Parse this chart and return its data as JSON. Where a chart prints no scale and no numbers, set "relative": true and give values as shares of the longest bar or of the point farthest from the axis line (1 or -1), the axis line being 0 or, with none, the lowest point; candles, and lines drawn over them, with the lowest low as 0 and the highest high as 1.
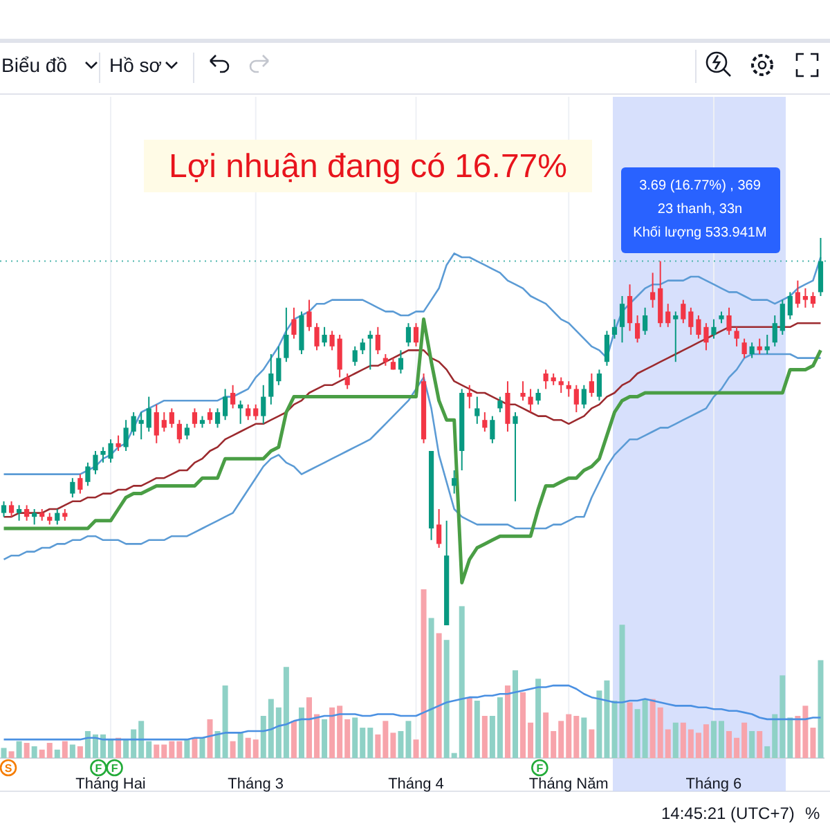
{
  "chart_data": [
    {
      "type": "candlestick",
      "relative": true,
      "categories": [
        null,
        null,
        null,
        null,
        null,
        null,
        null,
        null,
        null,
        null,
        null,
        null,
        null,
        null,
        null,
        null,
        null,
        null,
        null,
        null,
        null,
        null,
        null,
        null,
        null,
        null,
        null,
        null,
        null,
        null,
        null,
        null,
        null,
        null,
        null,
        null,
        null,
        null,
        null,
        null,
        null,
        null,
        null,
        null,
        null,
        null,
        null,
        null,
        null,
        null,
        null,
        null,
        null,
        null,
        null,
        null,
        null,
        null,
        null,
        null,
        null,
        null,
        null,
        null,
        null,
        null,
        null,
        null,
        null,
        null,
        null,
        null,
        null,
        null,
        null,
        null,
        null,
        null,
        null,
        null,
        null,
        null,
        null,
        null,
        null,
        null,
        null,
        null,
        null,
        null,
        null,
        null,
        null,
        null,
        null,
        null,
        null,
        null,
        null,
        null,
        null,
        null,
        null,
        null,
        null,
        null,
        null,
        null
      ],
      "ohlc": [
        [
          0.29,
          0.32,
          0.28,
          0.31
        ],
        [
          0.31,
          0.32,
          0.28,
          0.29
        ],
        [
          0.29,
          0.31,
          0.27,
          0.3
        ],
        [
          0.3,
          0.31,
          0.27,
          0.28
        ],
        [
          0.28,
          0.3,
          0.26,
          0.29
        ],
        [
          0.29,
          0.3,
          0.27,
          0.28
        ],
        [
          0.28,
          0.29,
          0.26,
          0.27
        ],
        [
          0.27,
          0.3,
          0.26,
          0.29
        ],
        [
          0.29,
          0.3,
          0.27,
          0.28
        ],
        [
          0.34,
          0.38,
          0.33,
          0.37
        ],
        [
          0.38,
          0.39,
          0.34,
          0.35
        ],
        [
          0.37,
          0.42,
          0.36,
          0.41
        ],
        [
          0.4,
          0.45,
          0.39,
          0.44
        ],
        [
          0.44,
          0.46,
          0.42,
          0.45
        ],
        [
          0.43,
          0.48,
          0.42,
          0.47
        ],
        [
          0.47,
          0.49,
          0.45,
          0.46
        ],
        [
          0.46,
          0.53,
          0.45,
          0.51
        ],
        [
          0.5,
          0.55,
          0.49,
          0.54
        ],
        [
          0.52,
          0.55,
          0.48,
          0.53
        ],
        [
          0.51,
          0.59,
          0.5,
          0.56
        ],
        [
          0.55,
          0.57,
          0.47,
          0.49
        ],
        [
          0.53,
          0.55,
          0.5,
          0.51
        ],
        [
          0.55,
          0.56,
          0.51,
          0.52
        ],
        [
          0.52,
          0.53,
          0.47,
          0.48
        ],
        [
          0.49,
          0.52,
          0.48,
          0.51
        ],
        [
          0.55,
          0.56,
          0.51,
          0.52
        ],
        [
          0.52,
          0.54,
          0.51,
          0.53
        ],
        [
          0.55,
          0.56,
          0.52,
          0.53
        ],
        [
          0.52,
          0.56,
          0.51,
          0.55
        ],
        [
          0.54,
          0.61,
          0.53,
          0.59
        ],
        [
          0.6,
          0.62,
          0.56,
          0.57
        ],
        [
          0.56,
          0.58,
          0.52,
          0.57
        ],
        [
          0.56,
          0.57,
          0.53,
          0.54
        ],
        [
          0.56,
          0.57,
          0.53,
          0.54
        ],
        [
          0.54,
          0.62,
          0.52,
          0.59
        ],
        [
          0.59,
          0.7,
          0.57,
          0.65
        ],
        [
          0.63,
          0.72,
          0.62,
          0.69
        ],
        [
          0.69,
          0.82,
          0.68,
          0.75
        ],
        [
          0.79,
          0.82,
          0.74,
          0.75
        ],
        [
          0.71,
          0.81,
          0.7,
          0.8
        ],
        [
          0.81,
          0.84,
          0.76,
          0.77
        ],
        [
          0.77,
          0.78,
          0.71,
          0.72
        ],
        [
          0.73,
          0.77,
          0.72,
          0.75
        ],
        [
          0.75,
          0.76,
          0.71,
          0.72
        ],
        [
          0.74,
          0.75,
          0.64,
          0.66
        ],
        [
          0.64,
          0.65,
          0.61,
          0.62
        ],
        [
          0.68,
          0.72,
          0.67,
          0.71
        ],
        [
          0.71,
          0.74,
          0.7,
          0.73
        ],
        [
          0.74,
          0.76,
          0.66,
          0.75
        ],
        [
          0.75,
          0.77,
          0.7,
          0.71
        ],
        [
          0.69,
          0.7,
          0.67,
          0.68
        ],
        [
          0.68,
          0.69,
          0.66,
          0.66
        ],
        [
          0.66,
          0.71,
          0.65,
          0.69
        ],
        [
          0.73,
          0.78,
          0.72,
          0.77
        ],
        [
          0.77,
          0.78,
          0.72,
          0.73
        ],
        [
          0.63,
          0.65,
          0.47,
          0.48
        ],
        [
          0.25,
          0.45,
          0.22,
          0.45
        ],
        [
          0.26,
          0.3,
          0.2,
          0.21
        ],
        [
          0.0,
          0.27,
          0.0,
          0.18
        ],
        [
          0.36,
          0.4,
          0.34,
          0.38
        ],
        [
          0.45,
          0.61,
          0.4,
          0.6
        ],
        [
          0.6,
          0.62,
          0.56,
          0.59
        ],
        [
          0.54,
          0.59,
          0.52,
          0.56
        ],
        [
          0.53,
          0.55,
          0.5,
          0.51
        ],
        [
          0.48,
          0.54,
          0.47,
          0.53
        ],
        [
          0.56,
          0.59,
          0.55,
          0.58
        ],
        [
          0.6,
          0.63,
          0.5,
          0.52
        ],
        [
          0.52,
          0.55,
          0.32,
          0.54
        ],
        [
          0.6,
          0.63,
          0.58,
          0.59
        ],
        [
          0.59,
          0.61,
          0.55,
          0.57
        ],
        [
          0.58,
          0.61,
          0.57,
          0.6
        ],
        [
          0.65,
          0.66,
          0.61,
          0.63
        ],
        [
          0.64,
          0.65,
          0.62,
          0.63
        ],
        [
          0.63,
          0.64,
          0.6,
          0.62
        ],
        [
          0.62,
          0.63,
          0.59,
          0.61
        ],
        [
          0.61,
          0.62,
          0.55,
          0.57
        ],
        [
          0.57,
          0.62,
          0.56,
          0.61
        ],
        [
          0.63,
          0.65,
          0.59,
          0.6
        ],
        [
          0.59,
          0.66,
          0.58,
          0.65
        ],
        [
          0.68,
          0.76,
          0.67,
          0.75
        ],
        [
          0.75,
          0.79,
          0.74,
          0.77
        ],
        [
          0.77,
          0.85,
          0.73,
          0.83
        ],
        [
          0.85,
          0.88,
          0.76,
          0.78
        ],
        [
          0.78,
          0.8,
          0.73,
          0.74
        ],
        [
          0.76,
          0.82,
          0.75,
          0.8
        ],
        [
          0.86,
          0.91,
          0.82,
          0.84
        ],
        [
          0.87,
          0.94,
          0.77,
          0.78
        ],
        [
          0.81,
          0.83,
          0.77,
          0.78
        ],
        [
          0.79,
          0.81,
          0.68,
          0.8
        ],
        [
          0.83,
          0.84,
          0.78,
          0.79
        ],
        [
          0.81,
          0.82,
          0.75,
          0.77
        ],
        [
          0.79,
          0.8,
          0.74,
          0.75
        ],
        [
          0.77,
          0.78,
          0.71,
          0.73
        ],
        [
          0.75,
          0.79,
          0.74,
          0.77
        ],
        [
          0.79,
          0.81,
          0.78,
          0.8
        ],
        [
          0.8,
          0.82,
          0.75,
          0.76
        ],
        [
          0.76,
          0.77,
          0.72,
          0.74
        ],
        [
          0.73,
          0.74,
          0.69,
          0.7
        ],
        [
          0.7,
          0.73,
          0.69,
          0.72
        ],
        [
          0.72,
          0.74,
          0.7,
          0.71
        ],
        [
          0.71,
          0.75,
          0.7,
          0.72
        ],
        [
          0.73,
          0.8,
          0.72,
          0.78
        ],
        [
          0.76,
          0.84,
          0.75,
          0.83
        ],
        [
          0.8,
          0.86,
          0.79,
          0.85
        ],
        [
          0.86,
          0.89,
          0.82,
          0.83
        ],
        [
          0.85,
          0.87,
          0.82,
          0.84
        ],
        [
          0.85,
          0.86,
          0.82,
          0.83
        ],
        [
          0.86,
          1.0,
          0.85,
          0.94
        ]
      ],
      "series": [
        {
          "type": "line",
          "color": "#5b9bd5",
          "values": [
            0.39,
            0.39,
            0.39,
            0.39,
            0.39,
            0.39,
            0.39,
            0.39,
            0.39,
            0.39,
            0.39,
            0.4,
            0.41,
            0.43,
            0.44,
            0.46,
            0.47,
            0.51,
            0.55,
            0.56,
            0.57,
            0.58,
            0.58,
            0.58,
            0.58,
            0.58,
            0.58,
            0.58,
            0.58,
            0.59,
            0.59,
            0.6,
            0.61,
            0.64,
            0.66,
            0.69,
            0.72,
            0.76,
            0.79,
            0.8,
            0.81,
            0.83,
            0.83,
            0.84,
            0.84,
            0.84,
            0.84,
            0.84,
            0.83,
            0.82,
            0.81,
            0.81,
            0.8,
            0.8,
            0.81,
            0.81,
            0.84,
            0.87,
            0.93,
            0.96,
            0.95,
            0.95,
            0.94,
            0.93,
            0.92,
            0.91,
            0.89,
            0.88,
            0.87,
            0.85,
            0.84,
            0.83,
            0.81,
            0.79,
            0.78,
            0.76,
            0.74,
            0.72,
            0.71,
            0.69,
            0.76,
            0.81,
            0.83,
            0.85,
            0.87,
            0.88,
            0.88,
            0.89,
            0.89,
            0.89,
            0.9,
            0.9,
            0.89,
            0.88,
            0.87,
            0.86,
            0.86,
            0.85,
            0.84,
            0.84,
            0.84,
            0.83,
            0.84,
            0.85,
            0.87,
            0.88,
            0.89,
            0.95
          ]
        },
        {
          "type": "line",
          "color": "#5b9bd5",
          "values": [
            0.17,
            0.18,
            0.18,
            0.19,
            0.19,
            0.2,
            0.2,
            0.21,
            0.21,
            0.22,
            0.22,
            0.23,
            0.23,
            0.22,
            0.22,
            0.22,
            0.21,
            0.21,
            0.21,
            0.22,
            0.22,
            0.22,
            0.23,
            0.23,
            0.23,
            0.24,
            0.25,
            0.26,
            0.27,
            0.28,
            0.29,
            0.32,
            0.35,
            0.38,
            0.41,
            0.43,
            0.44,
            0.42,
            0.41,
            0.39,
            0.4,
            0.41,
            0.42,
            0.43,
            0.44,
            0.45,
            0.46,
            0.47,
            0.48,
            0.5,
            0.52,
            0.54,
            0.56,
            0.58,
            0.61,
            0.64,
            0.56,
            0.44,
            0.37,
            0.3,
            0.28,
            0.27,
            0.26,
            0.26,
            0.26,
            0.26,
            0.26,
            0.25,
            0.25,
            0.25,
            0.25,
            0.25,
            0.26,
            0.26,
            0.27,
            0.28,
            0.28,
            0.33,
            0.37,
            0.41,
            0.44,
            0.46,
            0.48,
            0.48,
            0.49,
            0.5,
            0.51,
            0.51,
            0.52,
            0.53,
            0.54,
            0.55,
            0.56,
            0.59,
            0.61,
            0.64,
            0.66,
            0.69,
            0.7,
            0.7,
            0.7,
            0.7,
            0.7,
            0.7,
            0.69,
            0.69,
            0.69,
            0.69
          ]
        },
        {
          "type": "line",
          "color": "#9c2a2e",
          "values": [
            0.28,
            0.28,
            0.29,
            0.29,
            0.29,
            0.29,
            0.3,
            0.3,
            0.31,
            0.32,
            0.32,
            0.33,
            0.33,
            0.34,
            0.34,
            0.35,
            0.35,
            0.36,
            0.36,
            0.37,
            0.38,
            0.38,
            0.39,
            0.4,
            0.4,
            0.42,
            0.43,
            0.45,
            0.46,
            0.48,
            0.49,
            0.5,
            0.51,
            0.52,
            0.52,
            0.53,
            0.54,
            0.55,
            0.57,
            0.58,
            0.6,
            0.61,
            0.62,
            0.62,
            0.63,
            0.64,
            0.65,
            0.66,
            0.67,
            0.67,
            0.68,
            0.69,
            0.7,
            0.71,
            0.71,
            0.71,
            0.69,
            0.68,
            0.66,
            0.63,
            0.62,
            0.61,
            0.6,
            0.6,
            0.59,
            0.58,
            0.57,
            0.57,
            0.56,
            0.55,
            0.54,
            0.54,
            0.53,
            0.53,
            0.52,
            0.53,
            0.54,
            0.56,
            0.57,
            0.59,
            0.6,
            0.62,
            0.63,
            0.65,
            0.66,
            0.67,
            0.68,
            0.69,
            0.7,
            0.71,
            0.72,
            0.73,
            0.74,
            0.75,
            0.76,
            0.77,
            0.77,
            0.77,
            0.77,
            0.77,
            0.77,
            0.77,
            0.77,
            0.77,
            0.78,
            0.78,
            0.78,
            0.78
          ]
        },
        {
          "type": "line",
          "color": "#4a9e45",
          "values": [
            0.25,
            0.25,
            0.25,
            0.25,
            0.25,
            0.25,
            0.25,
            0.25,
            0.25,
            0.25,
            0.25,
            0.25,
            0.27,
            0.27,
            0.27,
            0.3,
            0.33,
            0.34,
            0.34,
            0.35,
            0.36,
            0.36,
            0.36,
            0.36,
            0.36,
            0.36,
            0.38,
            0.38,
            0.38,
            0.43,
            0.43,
            0.43,
            0.43,
            0.43,
            0.43,
            0.45,
            0.46,
            0.55,
            0.59,
            0.59,
            0.59,
            0.59,
            0.59,
            0.59,
            0.59,
            0.59,
            0.59,
            0.59,
            0.59,
            0.59,
            0.59,
            0.59,
            0.59,
            0.59,
            0.59,
            0.79,
            0.68,
            0.58,
            0.53,
            0.53,
            0.11,
            0.17,
            0.2,
            0.21,
            0.22,
            0.23,
            0.23,
            0.23,
            0.23,
            0.23,
            0.3,
            0.36,
            0.36,
            0.37,
            0.38,
            0.38,
            0.4,
            0.41,
            0.43,
            0.49,
            0.55,
            0.58,
            0.59,
            0.59,
            0.6,
            0.6,
            0.6,
            0.6,
            0.6,
            0.6,
            0.6,
            0.6,
            0.6,
            0.6,
            0.6,
            0.6,
            0.6,
            0.6,
            0.6,
            0.6,
            0.6,
            0.6,
            0.6,
            0.66,
            0.66,
            0.66,
            0.67,
            0.71
          ]
        }
      ],
      "ref_lines": [
        {
          "axis": "y",
          "value": 0.94,
          "color": "#4db6ac",
          "line_style": "dotted"
        }
      ],
      "annotations": [
        "Lợi nhuận đang có 16.77%",
        "3.69 (16.77%) , 369",
        "23 thanh, 33n",
        "Khối lượng 533.941M",
        "Biểu đồ",
        "Hồ sơ",
        "14:45:21 (UTC+7)",
        "%"
      ]
    },
    {
      "type": "bar",
      "relative": true,
      "grid": "x",
      "categories": [
        null,
        null,
        null,
        null,
        null,
        null,
        null,
        null,
        null,
        null,
        null,
        null,
        null,
        null,
        "Tháng Hai",
        null,
        null,
        null,
        null,
        null,
        null,
        null,
        null,
        null,
        null,
        null,
        null,
        null,
        null,
        null,
        null,
        null,
        null,
        "Tháng 3",
        null,
        null,
        null,
        null,
        null,
        null,
        null,
        null,
        null,
        null,
        null,
        null,
        null,
        null,
        null,
        null,
        null,
        null,
        null,
        null,
        "Tháng 4",
        null,
        null,
        null,
        null,
        null,
        null,
        null,
        null,
        null,
        null,
        null,
        null,
        null,
        null,
        null,
        null,
        null,
        null,
        null,
        "Tháng Năm",
        null,
        null,
        null,
        null,
        null,
        null,
        null,
        null,
        null,
        null,
        null,
        null,
        null,
        null,
        null,
        null,
        null,
        null,
        "Tháng 6",
        null,
        null,
        null,
        null,
        null,
        null,
        null,
        null,
        null,
        null,
        null,
        null,
        null,
        null
      ],
      "colors": [
        "#8fd1c6",
        "#f7a4ab",
        "#8fd1c6",
        "#f7a4ab",
        "#8fd1c6",
        "#f7a4ab",
        "#f7a4ab",
        "#8fd1c6",
        "#f7a4ab",
        "#8fd1c6",
        "#f7a4ab",
        "#8fd1c6",
        "#8fd1c6",
        "#8fd1c6",
        "#8fd1c6",
        "#f7a4ab",
        "#8fd1c6",
        "#8fd1c6",
        "#8fd1c6",
        "#8fd1c6",
        "#f7a4ab",
        "#f7a4ab",
        "#f7a4ab",
        "#f7a4ab",
        "#8fd1c6",
        "#f7a4ab",
        "#8fd1c6",
        "#f7a4ab",
        "#8fd1c6",
        "#8fd1c6",
        "#f7a4ab",
        "#8fd1c6",
        "#f7a4ab",
        "#f7a4ab",
        "#8fd1c6",
        "#8fd1c6",
        "#8fd1c6",
        "#8fd1c6",
        "#f7a4ab",
        "#8fd1c6",
        "#f7a4ab",
        "#f7a4ab",
        "#8fd1c6",
        "#f7a4ab",
        "#f7a4ab",
        "#f7a4ab",
        "#8fd1c6",
        "#8fd1c6",
        "#8fd1c6",
        "#f7a4ab",
        "#f7a4ab",
        "#f7a4ab",
        "#8fd1c6",
        "#8fd1c6",
        "#f7a4ab",
        "#f7a4ab",
        "#8fd1c6",
        "#f7a4ab",
        "#8fd1c6",
        "#8fd1c6",
        "#8fd1c6",
        "#f7a4ab",
        "#8fd1c6",
        "#f7a4ab",
        "#8fd1c6",
        "#8fd1c6",
        "#f7a4ab",
        "#8fd1c6",
        "#f7a4ab",
        "#f7a4ab",
        "#8fd1c6",
        "#f7a4ab",
        "#f7a4ab",
        "#f7a4ab",
        "#f7a4ab",
        "#f7a4ab",
        "#8fd1c6",
        "#f7a4ab",
        "#8fd1c6",
        "#8fd1c6",
        "#8fd1c6",
        "#8fd1c6",
        "#f7a4ab",
        "#8fd1c6",
        "#8fd1c6",
        "#f7a4ab",
        "#f7a4ab",
        "#f7a4ab",
        "#8fd1c6",
        "#f7a4ab",
        "#f7a4ab",
        "#f7a4ab",
        "#f7a4ab",
        "#8fd1c6",
        "#8fd1c6",
        "#f7a4ab",
        "#f7a4ab",
        "#f7a4ab",
        "#8fd1c6",
        "#f7a4ab",
        "#8fd1c6",
        "#8fd1c6",
        "#8fd1c6",
        "#8fd1c6",
        "#f7a4ab",
        "#f7a4ab",
        "#f7a4ab",
        "#8fd1c6"
      ],
      "values": [
        0.06,
        0.04,
        0.1,
        0.09,
        0.07,
        0.05,
        0.09,
        0.05,
        0.1,
        0.08,
        0.07,
        0.16,
        0.14,
        0.14,
        0.11,
        0.12,
        0.11,
        0.17,
        0.22,
        0.1,
        0.08,
        0.08,
        0.1,
        0.1,
        0.11,
        0.12,
        0.12,
        0.23,
        0.16,
        0.43,
        0.1,
        0.15,
        0.12,
        0.11,
        0.25,
        0.35,
        0.3,
        0.54,
        0.22,
        0.3,
        0.36,
        0.26,
        0.23,
        0.3,
        0.31,
        0.23,
        0.24,
        0.18,
        0.18,
        0.14,
        0.22,
        0.15,
        0.16,
        0.22,
        0.11,
        1.0,
        0.83,
        0.74,
        0.7,
        0.03,
        0.9,
        0.36,
        0.34,
        0.25,
        0.25,
        0.36,
        0.43,
        0.52,
        0.39,
        0.21,
        0.47,
        0.27,
        0.16,
        0.22,
        0.26,
        0.25,
        0.24,
        0.17,
        0.4,
        0.46,
        0.34,
        0.79,
        0.33,
        0.29,
        0.35,
        0.35,
        0.3,
        0.17,
        0.21,
        0.21,
        0.17,
        0.15,
        0.2,
        0.22,
        0.22,
        0.16,
        0.12,
        0.21,
        0.16,
        0.16,
        0.07,
        0.26,
        0.49,
        0.24,
        0.25,
        0.31,
        0.18,
        0.58
      ],
      "series": [
        {
          "type": "line",
          "color": "#4a90e2",
          "values": [
            0.11,
            0.11,
            0.11,
            0.11,
            0.11,
            0.11,
            0.11,
            0.11,
            0.11,
            0.11,
            0.11,
            0.12,
            0.12,
            0.11,
            0.11,
            0.11,
            0.11,
            0.11,
            0.11,
            0.11,
            0.11,
            0.11,
            0.11,
            0.11,
            0.11,
            0.12,
            0.12,
            0.13,
            0.14,
            0.15,
            0.15,
            0.15,
            0.16,
            0.16,
            0.16,
            0.17,
            0.19,
            0.2,
            0.22,
            0.23,
            0.23,
            0.24,
            0.25,
            0.25,
            0.26,
            0.26,
            0.26,
            0.25,
            0.25,
            0.26,
            0.26,
            0.26,
            0.25,
            0.25,
            0.25,
            0.27,
            0.29,
            0.31,
            0.33,
            0.34,
            0.35,
            0.36,
            0.36,
            0.37,
            0.37,
            0.38,
            0.38,
            0.39,
            0.4,
            0.41,
            0.42,
            0.42,
            0.43,
            0.43,
            0.43,
            0.41,
            0.38,
            0.36,
            0.35,
            0.34,
            0.33,
            0.33,
            0.34,
            0.34,
            0.35,
            0.34,
            0.33,
            0.32,
            0.31,
            0.31,
            0.31,
            0.3,
            0.3,
            0.29,
            0.29,
            0.28,
            0.28,
            0.27,
            0.26,
            0.24,
            0.23,
            0.23,
            0.23,
            0.23,
            0.23,
            0.23,
            0.24,
            0.24
          ]
        }
      ],
      "annotations": [
        "S",
        "F",
        "F",
        "F"
      ]
    }
  ]
}
